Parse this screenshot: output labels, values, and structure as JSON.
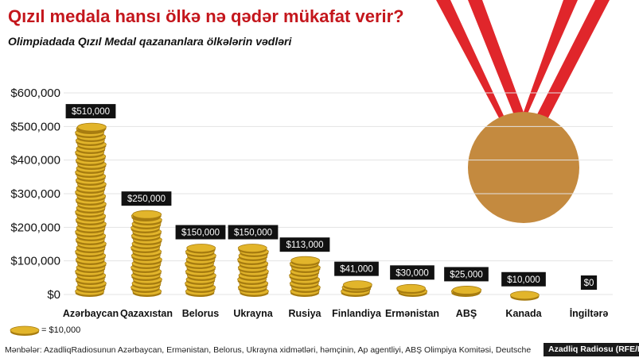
{
  "title": "Qızıl medala hansı ölkə nə qədər mükafat verir?",
  "subtitle": "Olimpiadada Qızıl Medal qazananlara ölkələrin vədləri",
  "legend": {
    "label": "= $10,000",
    "icon": "gold-coin-icon"
  },
  "sources": "Mənbələr: AzadliqRadiosunun Azərbaycan, Ermənistan, Belorus, Ukrayna xidmətləri, həmçinin, Ap agentliyi, ABŞ Olimpiya Komitəsi, Deutsche",
  "credit": "Azadliq Radiosu (RFE/RL)",
  "colors": {
    "title": "#c4161c",
    "coin": "#e2b52b",
    "coin_edge": "#a77c10",
    "label_bg": "#111111",
    "ribbon_red": "#e0262b",
    "ribbon_white": "#ffffff",
    "medal": "#c48a3f",
    "grid": "#e3e3e3"
  },
  "chart_data": {
    "type": "bar",
    "categories": [
      "Azərbaycan",
      "Qazaxıstan",
      "Belorus",
      "Ukrayna",
      "Rusiya",
      "Finlandiya",
      "Ermənistan",
      "ABŞ",
      "Kanada",
      "İngiltərə"
    ],
    "values": [
      510000,
      250000,
      150000,
      150000,
      113000,
      41000,
      30000,
      25000,
      10000,
      0
    ],
    "data_labels": [
      "$510,000",
      "$250,000",
      "$150,000",
      "$150,000",
      "$113,000",
      "$41,000",
      "$30,000",
      "$25,000",
      "$10,000",
      "$0"
    ],
    "y_ticks": [
      0,
      100000,
      200000,
      300000,
      400000,
      500000,
      600000
    ],
    "y_tick_labels": [
      "$0",
      "$100,000",
      "$200,000",
      "$300,000",
      "$400,000",
      "$500,000",
      "$600,000"
    ],
    "ylim": [
      0,
      600000
    ],
    "grid": true,
    "xlabel": "",
    "ylabel": ""
  }
}
